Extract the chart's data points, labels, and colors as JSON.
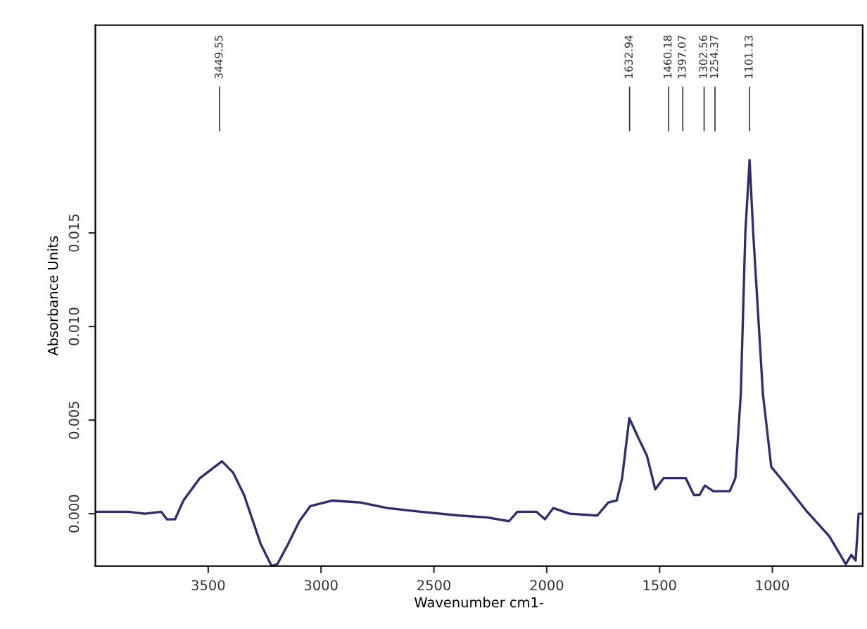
{
  "chart_data": {
    "type": "line",
    "xlabel": "Wavenumber cm1-",
    "ylabel": "Absorbance Units",
    "xlim": [
      4000,
      600
    ],
    "xticks": [
      3500,
      3000,
      2500,
      2000,
      1500,
      1000
    ],
    "ylim": [
      -0.0028,
      0.0261
    ],
    "yticks": [
      {
        "value": 0,
        "label": "0.000"
      },
      {
        "value": 0.005,
        "label": "0.005"
      },
      {
        "value": 0.01,
        "label": "0.010"
      },
      {
        "value": 0.015,
        "label": "0.015"
      }
    ],
    "grid": false,
    "legend": false,
    "marker": "none",
    "line_style": "solid",
    "series": [
      {
        "color": "#2e2e6e",
        "x": [
          4000,
          3855,
          3781,
          3708,
          3683,
          3647,
          3610,
          3537,
          3439,
          3390,
          3341,
          3268,
          3219,
          3194,
          3145,
          3096,
          3048,
          2950,
          2827,
          2705,
          2558,
          2387,
          2265,
          2167,
          2130,
          2045,
          2008,
          1971,
          1898,
          1776,
          1727,
          1690,
          1666,
          1634,
          1592,
          1556,
          1519,
          1482,
          1384,
          1348,
          1323,
          1299,
          1262,
          1189,
          1164,
          1140,
          1120,
          1101,
          1085,
          1042,
          1005,
          944,
          846,
          748,
          699,
          675,
          650,
          631,
          618,
          600
        ],
        "values": [
          0.0001,
          0.0001,
          0,
          0.0001,
          -0.0003,
          -0.0003,
          0.0007,
          0.0019,
          0.0028,
          0.0022,
          0.001,
          -0.0016,
          -0.0028,
          -0.0027,
          -0.0016,
          -0.0004,
          0.0004,
          0.0007,
          0.0006,
          0.0003,
          0.0001,
          -0.0001,
          -0.0002,
          -0.0004,
          0.0001,
          0.0001,
          -0.0003,
          0.0003,
          0,
          -0.0001,
          0.0006,
          0.0007,
          0.0019,
          0.0051,
          0.004,
          0.0031,
          0.0013,
          0.0019,
          0.0019,
          0.001,
          0.001,
          0.0015,
          0.0012,
          0.0012,
          0.0019,
          0.0064,
          0.015,
          0.0189,
          0.015,
          0.0064,
          0.0025,
          0.0016,
          0.0001,
          -0.0012,
          -0.0022,
          -0.0027,
          -0.0022,
          -0.0025,
          0,
          0
        ]
      }
    ],
    "ref_lines": [
      {
        "axis": "x",
        "value": 3449.55,
        "label": "3449.55"
      },
      {
        "axis": "x",
        "value": 1632.94,
        "label": "1632.94"
      },
      {
        "axis": "x",
        "value": 1460.18,
        "label": "1460.18"
      },
      {
        "axis": "x",
        "value": 1397.07,
        "label": "1397.07"
      },
      {
        "axis": "x",
        "value": 1302.56,
        "label": "1302.56"
      },
      {
        "axis": "x",
        "value": 1254.37,
        "label": "1254.37"
      },
      {
        "axis": "x",
        "value": 1101.13,
        "label": "1101.13"
      }
    ]
  }
}
